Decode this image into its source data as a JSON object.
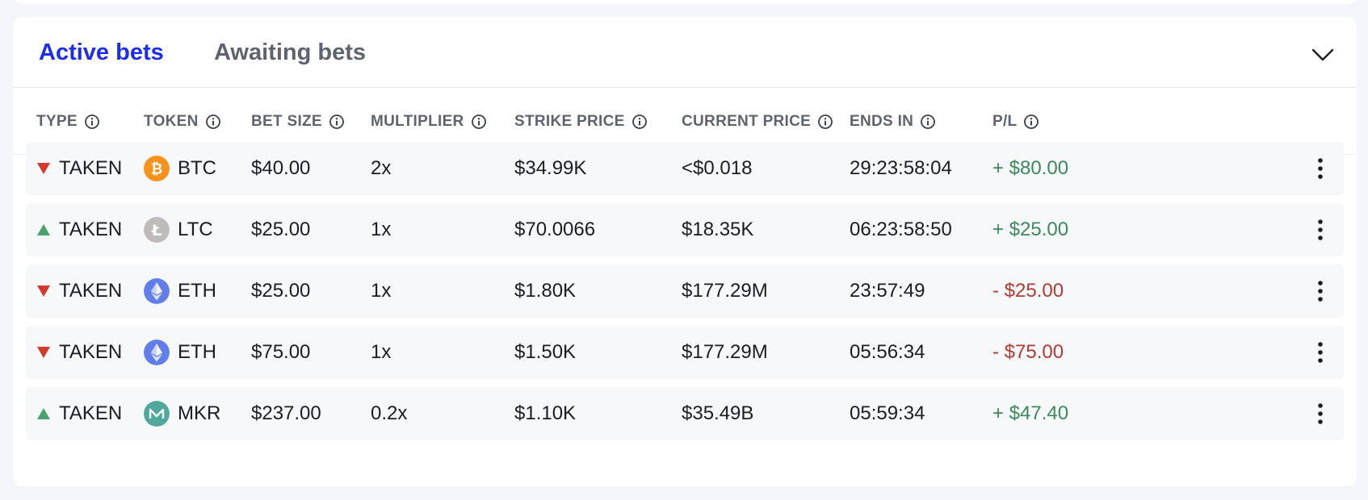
{
  "tabs": {
    "active": "Active bets",
    "inactive": "Awaiting bets"
  },
  "columns": [
    "TYPE",
    "TOKEN",
    "BET SIZE",
    "MULTIPLIER",
    "STRIKE PRICE",
    "CURRENT PRICE",
    "ENDS IN",
    "P/L"
  ],
  "rows": [
    {
      "direction": "down",
      "type": "TAKEN",
      "token": "BTC",
      "bet_size": "$40.00",
      "multiplier": "2x",
      "strike": "$34.99K",
      "current": "<$0.018",
      "ends_in": "29:23:58:04",
      "pl": "+ $80.00",
      "pl_sign": "pos"
    },
    {
      "direction": "up",
      "type": "TAKEN",
      "token": "LTC",
      "bet_size": "$25.00",
      "multiplier": "1x",
      "strike": "$70.0066",
      "current": "$18.35K",
      "ends_in": "06:23:58:50",
      "pl": "+ $25.00",
      "pl_sign": "pos"
    },
    {
      "direction": "down",
      "type": "TAKEN",
      "token": "ETH",
      "bet_size": "$25.00",
      "multiplier": "1x",
      "strike": "$1.80K",
      "current": "$177.29M",
      "ends_in": "23:57:49",
      "pl": "- $25.00",
      "pl_sign": "neg"
    },
    {
      "direction": "down",
      "type": "TAKEN",
      "token": "ETH",
      "bet_size": "$75.00",
      "multiplier": "1x",
      "strike": "$1.50K",
      "current": "$177.29M",
      "ends_in": "05:56:34",
      "pl": "- $75.00",
      "pl_sign": "neg"
    },
    {
      "direction": "up",
      "type": "TAKEN",
      "token": "MKR",
      "bet_size": "$237.00",
      "multiplier": "0.2x",
      "strike": "$1.10K",
      "current": "$35.49B",
      "ends_in": "05:59:34",
      "pl": "+ $47.40",
      "pl_sign": "pos"
    }
  ],
  "icons": {
    "BTC": "bitcoin-icon",
    "LTC": "litecoin-icon",
    "ETH": "ethereum-icon",
    "MKR": "maker-icon"
  },
  "colors": {
    "accent": "#1c2df0",
    "positive": "#3a8a5a",
    "negative": "#b23a33",
    "up_triangle": "#4aa36c",
    "down_triangle": "#d33a2c",
    "btc": "#f7931a",
    "ltc": "#bfbbbb",
    "eth": "#627eea",
    "mkr": "#4fa89b"
  }
}
